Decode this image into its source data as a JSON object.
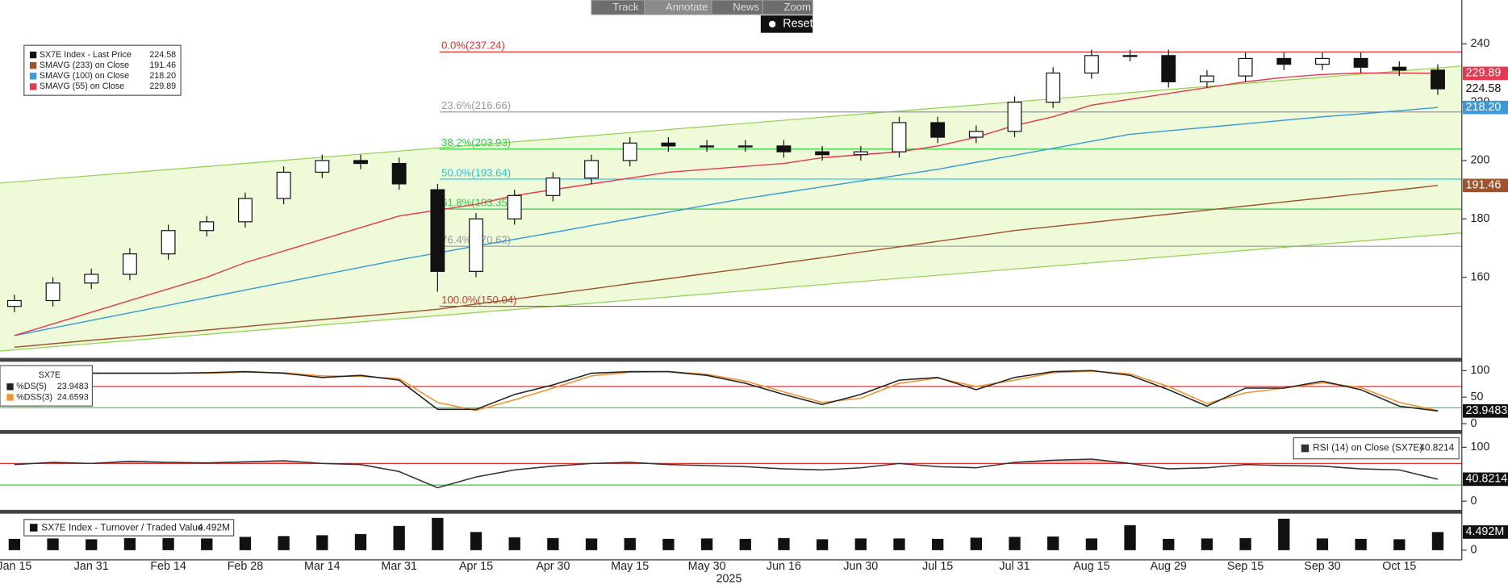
{
  "toolbar": {
    "buttons": [
      "Track",
      "Annotate",
      "News",
      "Zoom"
    ],
    "reset": "Reset"
  },
  "chart_data": [
    {
      "type": "candlestick",
      "x_label": "2025",
      "categories": [
        "Jan 15",
        null,
        "Jan 31",
        null,
        "Feb 14",
        null,
        "Feb 28",
        null,
        "Mar 14",
        null,
        "Mar 31",
        null,
        "Apr 15",
        null,
        "Apr 30",
        null,
        "May 15",
        null,
        "May 30",
        null,
        "Jun 16",
        null,
        "Jun 30",
        null,
        "Jul 15",
        null,
        "Jul 31",
        null,
        "Aug 15",
        null,
        "Aug 29",
        null,
        "Sep 15",
        null,
        "Sep 30",
        null,
        "Oct 15",
        null
      ],
      "ylim": [
        133,
        255
      ],
      "yticks": [
        160,
        180,
        200,
        220,
        240
      ],
      "price": {
        "name": "SX7E Index - Last Price",
        "last_label": "224.58",
        "color": "#111",
        "open": [
          150,
          152,
          158,
          161,
          168,
          176,
          179,
          187,
          196,
          200,
          199,
          190,
          162,
          180,
          188,
          194,
          200,
          206,
          205,
          205,
          205,
          203,
          202,
          203,
          213,
          208,
          210,
          220,
          230,
          236,
          236,
          227,
          229,
          235,
          233,
          235,
          232,
          231
        ],
        "high": [
          154,
          160,
          163,
          170,
          178,
          181,
          189,
          198,
          202,
          202,
          201,
          192,
          182,
          190,
          196,
          202,
          208,
          208,
          207,
          207,
          207,
          205,
          205,
          215,
          215,
          212,
          222,
          232,
          238,
          238,
          238,
          231,
          237,
          237,
          237,
          237,
          234,
          233
        ],
        "low": [
          148,
          150,
          156,
          159,
          166,
          174,
          177,
          185,
          194,
          197,
          190,
          155,
          160,
          178,
          186,
          192,
          198,
          203,
          203,
          203,
          201,
          200,
          200,
          201,
          206,
          206,
          208,
          218,
          228,
          234,
          225,
          225,
          227,
          231,
          231,
          230,
          229,
          222.5
        ],
        "close": [
          152,
          158,
          161,
          168,
          176,
          179,
          187,
          196,
          200,
          199,
          192,
          162,
          180,
          188,
          194,
          200,
          206,
          205,
          205,
          205,
          203,
          202,
          203,
          213,
          208,
          210,
          220,
          230,
          236,
          236,
          227,
          229,
          235,
          233,
          235,
          232,
          231,
          224.58
        ]
      },
      "series": [
        {
          "name": "SMAVG (233)  on Close",
          "color": "#a0522d",
          "last_label": "191.46",
          "values": [
            136,
            137.2,
            138.4,
            139.5,
            140.7,
            141.9,
            143.1,
            144.3,
            145.5,
            146.6,
            147.8,
            149,
            150.8,
            152.5,
            154.3,
            156,
            157.8,
            159.5,
            161.3,
            163,
            164.9,
            166.7,
            168.6,
            170.4,
            172.3,
            174.1,
            176,
            177.4,
            178.8,
            180.2,
            181.6,
            183,
            184.4,
            185.8,
            187.2,
            188.6,
            190,
            191.46
          ]
        },
        {
          "name": "SMAVG (100)  on Close",
          "color": "#3a9ad9",
          "last_label": "218.20",
          "values": [
            140,
            142.6,
            145.2,
            147.8,
            150.4,
            153,
            155.6,
            158.2,
            160.8,
            163.4,
            166,
            168.3,
            170.7,
            173,
            175.3,
            177.7,
            180,
            182.3,
            184.7,
            187,
            189,
            191,
            193,
            195,
            197,
            199.4,
            201.8,
            204.2,
            206.6,
            209,
            210.2,
            211.4,
            212.6,
            213.8,
            215,
            216,
            217.1,
            218.2
          ]
        },
        {
          "name": "SMAVG (55)  on Close",
          "color": "#e8384f",
          "last_label": "229.89",
          "values": [
            140,
            144,
            148,
            152,
            156,
            160,
            165,
            169,
            173,
            177,
            181,
            183,
            185,
            188,
            190,
            192,
            194,
            196,
            197,
            198,
            199,
            201,
            202,
            203,
            205,
            208,
            212,
            215,
            219,
            221,
            223,
            225,
            227,
            228.5,
            229.5,
            230,
            230,
            229.89
          ]
        }
      ],
      "channel": {
        "color": "#8fd14f",
        "fill": "#eefad8",
        "upper": [
          192.3,
          232.4
        ],
        "lower": [
          134.7,
          175.2
        ]
      },
      "fib_levels": [
        {
          "label": "0.0%(237.24)",
          "value": 237.24,
          "color": "#e03030"
        },
        {
          "label": "23.6%(216.66)",
          "value": 216.66,
          "color": "#999999"
        },
        {
          "label": "38.2%(203.93)",
          "value": 203.93,
          "color": "#2ecc40"
        },
        {
          "label": "50.0%(193.64)",
          "value": 193.64,
          "color": "#22c8d8"
        },
        {
          "label": "61.8%(183.35)",
          "value": 183.35,
          "color": "#2ecc40"
        },
        {
          "label": "76.4%(170.62)",
          "value": 170.62,
          "color": "#999999"
        },
        {
          "label": "100.0%(150.04)",
          "value": 150.04,
          "color": "#e03030"
        }
      ]
    },
    {
      "type": "line",
      "legend_title": "SX7E",
      "ylim": [
        -12,
        113
      ],
      "yticks": [
        0,
        50,
        100
      ],
      "levels": [
        {
          "value": 70,
          "color": "#e03030"
        },
        {
          "value": 30,
          "color": "#2ecc40"
        }
      ],
      "series": [
        {
          "name": "%DS(5)",
          "color": "#222222",
          "last_label": "23.9483",
          "values": [
            98,
            95,
            95,
            95,
            95,
            96,
            98,
            95,
            87,
            91,
            82,
            27,
            27,
            55,
            73,
            95,
            98,
            98,
            91,
            76,
            55,
            36,
            55,
            82,
            87,
            64,
            87,
            98,
            100,
            91,
            64,
            33,
            67,
            67,
            80,
            64,
            33,
            23.9483
          ]
        },
        {
          "name": "%DSS(3)",
          "color": "#f5922e",
          "last_label": "24.6593",
          "values": [
            97,
            96,
            95,
            95,
            95,
            95,
            97,
            96,
            90,
            89,
            85,
            40,
            25,
            45,
            67,
            90,
            97,
            98,
            93,
            80,
            60,
            40,
            48,
            76,
            86,
            70,
            82,
            96,
            99,
            94,
            70,
            38,
            58,
            67,
            77,
            68,
            40,
            24.6593
          ]
        }
      ]
    },
    {
      "type": "line",
      "ylim": [
        -16,
        123
      ],
      "yticks": [
        0,
        100
      ],
      "fill_above": 70,
      "fill_color": "#f4b6b6",
      "levels": [
        {
          "value": 70,
          "color": "#e03030"
        },
        {
          "value": 30,
          "color": "#2ecc40"
        }
      ],
      "series": [
        {
          "name": "RSI (14)  on Close (SX7E)",
          "color": "#333333",
          "last_label": "40.8214",
          "values": [
            68,
            72,
            70,
            74,
            72,
            71,
            73,
            75,
            70,
            68,
            55,
            25,
            45,
            58,
            65,
            70,
            72,
            68,
            66,
            64,
            60,
            58,
            62,
            70,
            64,
            62,
            72,
            76,
            78,
            70,
            60,
            62,
            68,
            66,
            65,
            60,
            58,
            40.8214
          ]
        }
      ]
    },
    {
      "type": "bar",
      "ylim": [
        -2.4,
        8.8
      ],
      "yticks": [
        0
      ],
      "series": [
        {
          "name": "SX7E Index - Turnover / Traded Value",
          "color": "#111111",
          "last_label": "4.492M",
          "values": [
            2.8,
            2.9,
            2.7,
            3.0,
            3.0,
            2.9,
            3.3,
            3.5,
            3.7,
            4.0,
            6.0,
            8.0,
            4.5,
            3.2,
            3.0,
            2.9,
            3.0,
            2.8,
            2.9,
            2.8,
            3.0,
            2.7,
            2.9,
            2.9,
            2.8,
            3.1,
            3.3,
            3.4,
            2.9,
            6.2,
            2.8,
            2.9,
            3.0,
            7.8,
            2.9,
            2.8,
            2.7,
            4.492
          ]
        }
      ]
    }
  ]
}
